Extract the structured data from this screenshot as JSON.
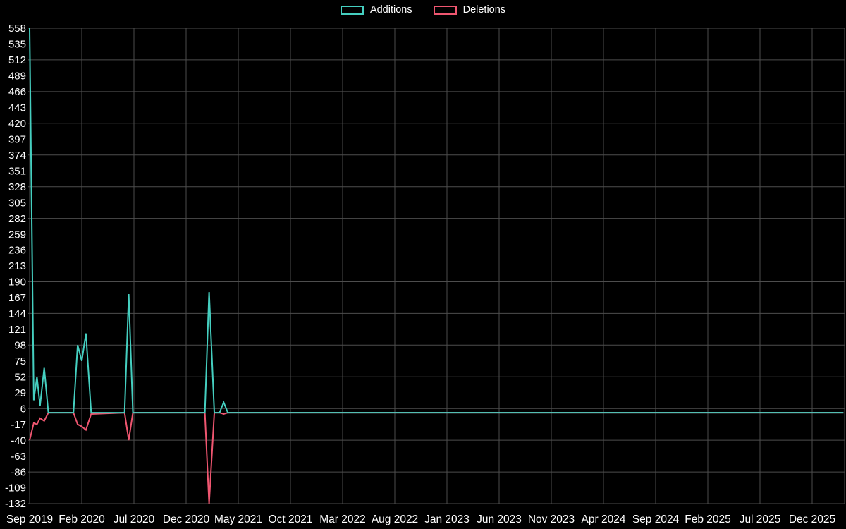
{
  "colors": {
    "background": "#000000",
    "grid": "#4d4d4d",
    "text": "#ffffff",
    "additions": "#45cfc0",
    "deletions": "#ef5670"
  },
  "legend": {
    "position": "top-center"
  },
  "chart_data": {
    "type": "line",
    "title": "",
    "xlabel": "",
    "ylabel": "",
    "grid": true,
    "legend_position": "top-center",
    "ylim": [
      -132,
      558
    ],
    "y_tick_labels": [
      558,
      535,
      512,
      489,
      466,
      443,
      420,
      397,
      374,
      351,
      328,
      305,
      282,
      259,
      236,
      213,
      190,
      167,
      144,
      121,
      98,
      75,
      52,
      29,
      6,
      -17,
      -40,
      -63,
      -86,
      -109,
      -132
    ],
    "y_grid_values": [
      558,
      512,
      466,
      420,
      374,
      328,
      282,
      236,
      190,
      144,
      98,
      52,
      6,
      -40,
      -86,
      -132
    ],
    "x_tick_labels": [
      "Sep 2019",
      "Feb 2020",
      "Jul 2020",
      "Dec 2020",
      "May 2021",
      "Oct 2021",
      "Mar 2022",
      "Aug 2022",
      "Jan 2023",
      "Jun 2023",
      "Nov 2023",
      "Apr 2024",
      "Sep 2024",
      "Feb 2025",
      "Jul 2025",
      "Dec 2025"
    ],
    "months_per_x_tick": 5,
    "x_months": [
      0,
      0.4,
      0.7,
      1.0,
      1.4,
      1.8,
      4.2,
      4.6,
      5.0,
      5.4,
      5.9,
      9.1,
      9.5,
      9.9,
      16.8,
      17.2,
      17.7,
      18.2,
      18.6,
      19.0,
      78
    ],
    "series": [
      {
        "name": "Additions",
        "color": "#45cfc0",
        "values": [
          558,
          18,
          52,
          10,
          65,
          0,
          0,
          98,
          75,
          115,
          0,
          0,
          172,
          0,
          0,
          175,
          0,
          0,
          15,
          0,
          0
        ]
      },
      {
        "name": "Deletions",
        "color": "#ef5670",
        "values": [
          -40,
          -15,
          -17,
          -8,
          -12,
          0,
          0,
          -17,
          -20,
          -25,
          -2,
          0,
          -40,
          0,
          0,
          -132,
          0,
          0,
          -2,
          0,
          0
        ]
      }
    ]
  }
}
